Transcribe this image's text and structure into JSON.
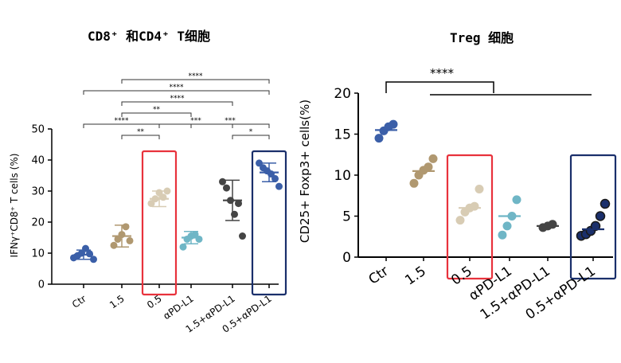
{
  "chart_data": [
    {
      "type": "scatter",
      "title": "CD8⁺ 和CD4⁺ T细胞",
      "ylabel": "IFNγ⁺CD8⁺ T cells (%)",
      "ylim": [
        0,
        50
      ],
      "yticks": [
        "0",
        "10",
        "20",
        "30",
        "40",
        "50"
      ],
      "categories": [
        "Ctr",
        "1.5",
        "0.5",
        "αPD-L1",
        "1.5+αPD-L1",
        "0.5+αPD-L1"
      ],
      "series": [
        {
          "category": "Ctr",
          "color": "#3b5fa8",
          "mean": 9.5,
          "sd": 1.5,
          "points": [
            8.5,
            9.2,
            10.0,
            11.5,
            9.8,
            8.0
          ]
        },
        {
          "category": "1.5",
          "color": "#b09870",
          "mean": 15.5,
          "sd": 3.5,
          "points": [
            12.5,
            14.5,
            16.0,
            18.5,
            14.0
          ]
        },
        {
          "category": "0.5",
          "color": "#d8ccb4",
          "mean": 27.5,
          "sd": 2.5,
          "points": [
            26.0,
            27.5,
            29.5,
            28.0,
            30.0
          ]
        },
        {
          "category": "αPD-L1",
          "color": "#6fb6c6",
          "mean": 15.0,
          "sd": 2.0,
          "points": [
            12.0,
            14.5,
            15.5,
            16.0,
            14.5
          ]
        },
        {
          "category": "1.5+αPD-L1",
          "color": "#444444",
          "mean": 27.0,
          "sd": 6.5,
          "points": [
            33.0,
            31.0,
            27.0,
            22.5,
            26.0,
            15.5
          ]
        },
        {
          "category": "0.5+αPD-L1",
          "color": "#3b5fa8",
          "mean": 36.0,
          "sd": 3.0,
          "points": [
            39.0,
            37.5,
            36.5,
            35.5,
            34.0,
            31.5
          ]
        }
      ],
      "significance": [
        {
          "from": "1.5",
          "to": "0.5+αPD-L1",
          "label": "****"
        },
        {
          "from": "Ctr",
          "to": "0.5+αPD-L1",
          "label": "****"
        },
        {
          "from": "1.5",
          "to": "1.5+αPD-L1",
          "label": "****"
        },
        {
          "from": "1.5",
          "to": "αPD-L1",
          "label": "**"
        },
        {
          "from": "Ctr",
          "to": "0.5",
          "label": "****"
        },
        {
          "from": "0.5",
          "to": "1.5+αPD-L1",
          "label": "***"
        },
        {
          "from": "αPD-L1",
          "to": "0.5+αPD-L1",
          "label": "***"
        },
        {
          "from": "1.5",
          "to": "0.5",
          "label": "**"
        },
        {
          "from": "1.5+αPD-L1",
          "to": "0.5+αPD-L1",
          "label": "*"
        }
      ],
      "highlight_boxes": [
        {
          "category": "0.5",
          "color": "#e8323c"
        },
        {
          "category": "0.5+αPD-L1",
          "color": "#1a2f6b"
        }
      ]
    },
    {
      "type": "scatter",
      "title": "Treg 细胞",
      "ylabel": "CD25+ Foxp3+ cells(%)",
      "ylim": [
        0,
        20
      ],
      "yticks": [
        "0",
        "5",
        "10",
        "15",
        "20"
      ],
      "categories": [
        "Ctr",
        "1.5",
        "0.5",
        "αPD-L1",
        "1.5+αPD-L1",
        "0.5+αPD-L1"
      ],
      "series": [
        {
          "category": "Ctr",
          "color": "#3b5fa8",
          "mean": 15.5,
          "points": [
            14.5,
            15.4,
            15.9,
            16.2
          ]
        },
        {
          "category": "1.5",
          "color": "#b09870",
          "mean": 10.5,
          "points": [
            9.0,
            10.0,
            10.6,
            11.0,
            12.0
          ]
        },
        {
          "category": "0.5",
          "color": "#d8ccb4",
          "mean": 6.0,
          "points": [
            4.5,
            5.5,
            6.0,
            6.2,
            8.3
          ]
        },
        {
          "category": "αPD-L1",
          "color": "#6fb6c6",
          "mean": 5.0,
          "points": [
            2.7,
            3.8,
            5.0,
            7.0
          ]
        },
        {
          "category": "1.5+αPD-L1",
          "color": "#444444",
          "mean": 3.8,
          "points": [
            3.6,
            3.8,
            4.0
          ]
        },
        {
          "category": "0.5+αPD-L1",
          "color": "#1a2f6b",
          "mean": 3.4,
          "points": [
            2.6,
            2.8,
            3.2,
            3.8,
            5.0,
            6.5
          ]
        }
      ],
      "significance": [
        {
          "from": "Ctr",
          "to": "1.5",
          "label": "****"
        },
        {
          "from": "Ctr",
          "to": "0.5+αPD-L1",
          "label": ""
        }
      ],
      "highlight_boxes": [
        {
          "category": "0.5",
          "color": "#e8323c"
        },
        {
          "category": "0.5+αPD-L1",
          "color": "#1a2f6b"
        }
      ]
    }
  ]
}
